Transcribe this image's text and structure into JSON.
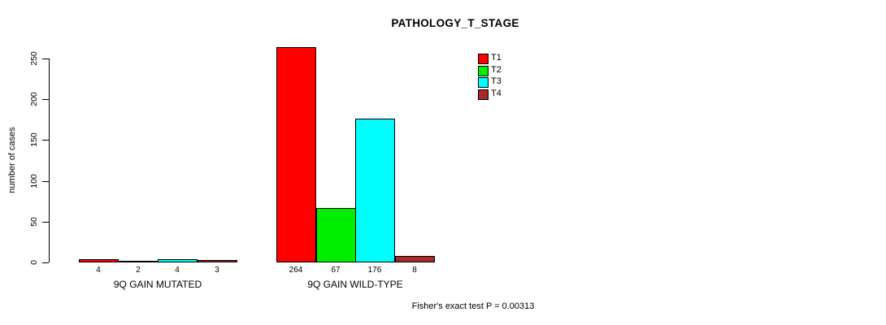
{
  "chart_data": {
    "type": "bar",
    "title": "PATHOLOGY_T_STAGE",
    "ylabel": "number of cases",
    "xlabel": "",
    "categories": [
      "9Q GAIN MUTATED",
      "9Q GAIN WILD-TYPE"
    ],
    "series": [
      {
        "name": "T1",
        "color": "#ff0000",
        "values": [
          4,
          264
        ]
      },
      {
        "name": "T2",
        "color": "#00ee00",
        "values": [
          2,
          67
        ]
      },
      {
        "name": "T3",
        "color": "#00ffff",
        "values": [
          4,
          176
        ]
      },
      {
        "name": "T4",
        "color": "#a52a2a",
        "values": [
          3,
          8
        ]
      }
    ],
    "yticks": [
      0,
      50,
      100,
      150,
      200,
      250
    ],
    "ylim": [
      0,
      264
    ],
    "grid": false,
    "legend_position": "top-right-inside",
    "axis_color": "#000000",
    "annotation": "Fisher's exact test P = 0.00313"
  }
}
